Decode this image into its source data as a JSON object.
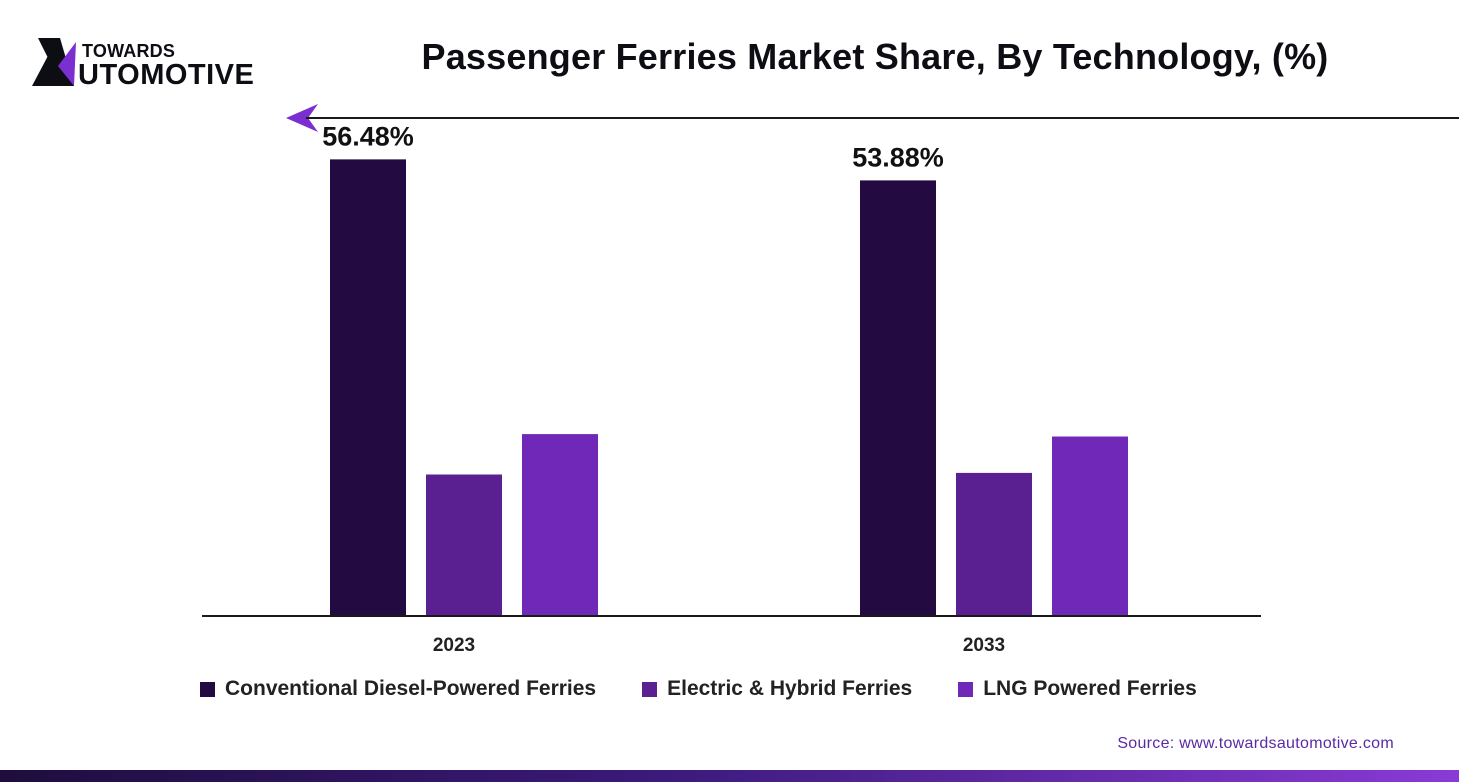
{
  "brand": {
    "top": "TOWARDS",
    "bottom": "UTOMOTIVE"
  },
  "chart_data": {
    "type": "bar",
    "title": "Passenger Ferries Market Share, By Technology, (%)",
    "categories": [
      "2023",
      "2033"
    ],
    "series": [
      {
        "name": "Conventional Diesel-Powered Ferries",
        "values": [
          56.48,
          53.88
        ],
        "color": "#230a40",
        "labels": [
          "56.48%",
          "53.88%"
        ]
      },
      {
        "name": "Electric & Hybrid Ferries",
        "values": [
          17.5,
          17.7
        ],
        "color": "#5a1f91",
        "labels": [
          "",
          ""
        ]
      },
      {
        "name": "LNG Powered Ferries",
        "values": [
          22.5,
          22.2
        ],
        "color": "#7028b9",
        "labels": [
          "",
          ""
        ]
      }
    ],
    "ylim": [
      0,
      60
    ],
    "xlabel": "",
    "ylabel": "",
    "grid": false,
    "legend": "bottom"
  },
  "source": "Source: www.towardsautomotive.com",
  "colors": {
    "accent": "#7b2fd0",
    "dark": "#230a40"
  }
}
